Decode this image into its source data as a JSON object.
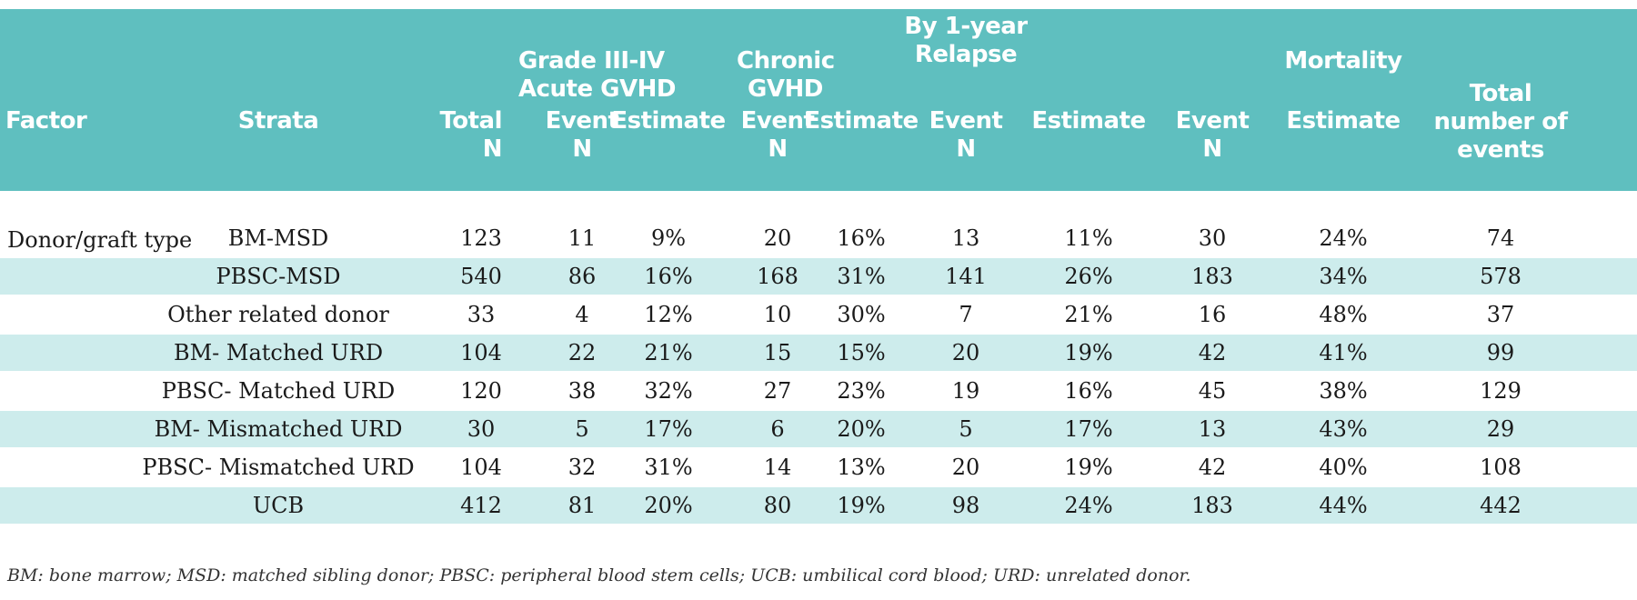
{
  "headers": {
    "factor": "Factor",
    "strata": "Strata",
    "total_n": [
      "Total",
      "N"
    ],
    "acute_group": [
      "Grade III-IV",
      "Acute GVHD"
    ],
    "acute_event": [
      "Event",
      "N"
    ],
    "acute_estimate": "Estimate",
    "chronic_group": [
      "Chronic",
      "GVHD"
    ],
    "chronic_event": [
      "Event",
      "N"
    ],
    "chronic_estimate": "Estimate",
    "relapse_group": [
      "By 1-year",
      "Relapse"
    ],
    "relapse_event": [
      "Event",
      "N"
    ],
    "relapse_estimate": "Estimate",
    "mortality_group": "Mortality",
    "mortality_event": [
      "Event",
      "N"
    ],
    "mortality_estimate": "Estimate",
    "total_events": [
      "Total",
      "number of",
      "events"
    ]
  },
  "factor_label": "Donor/graft type",
  "rows": [
    {
      "strata": "BM-MSD",
      "total": "123",
      "agvhd_n": "11",
      "agvhd_est": "9%",
      "cgvhd_n": "20",
      "cgvhd_est": "16%",
      "rel_n": "13",
      "rel_est": "11%",
      "mort_n": "30",
      "mort_est": "24%",
      "total_events": "74"
    },
    {
      "strata": "PBSC-MSD",
      "total": "540",
      "agvhd_n": "86",
      "agvhd_est": "16%",
      "cgvhd_n": "168",
      "cgvhd_est": "31%",
      "rel_n": "141",
      "rel_est": "26%",
      "mort_n": "183",
      "mort_est": "34%",
      "total_events": "578"
    },
    {
      "strata": "Other related donor",
      "total": "33",
      "agvhd_n": "4",
      "agvhd_est": "12%",
      "cgvhd_n": "10",
      "cgvhd_est": "30%",
      "rel_n": "7",
      "rel_est": "21%",
      "mort_n": "16",
      "mort_est": "48%",
      "total_events": "37"
    },
    {
      "strata": "BM- Matched URD",
      "total": "104",
      "agvhd_n": "22",
      "agvhd_est": "21%",
      "cgvhd_n": "15",
      "cgvhd_est": "15%",
      "rel_n": "20",
      "rel_est": "19%",
      "mort_n": "42",
      "mort_est": "41%",
      "total_events": "99"
    },
    {
      "strata": "PBSC- Matched URD",
      "total": "120",
      "agvhd_n": "38",
      "agvhd_est": "32%",
      "cgvhd_n": "27",
      "cgvhd_est": "23%",
      "rel_n": "19",
      "rel_est": "16%",
      "mort_n": "45",
      "mort_est": "38%",
      "total_events": "129"
    },
    {
      "strata": "BM- Mismatched URD",
      "total": "30",
      "agvhd_n": "5",
      "agvhd_est": "17%",
      "cgvhd_n": "6",
      "cgvhd_est": "20%",
      "rel_n": "5",
      "rel_est": "17%",
      "mort_n": "13",
      "mort_est": "43%",
      "total_events": "29"
    },
    {
      "strata": "PBSC- Mismatched URD",
      "total": "104",
      "agvhd_n": "32",
      "agvhd_est": "31%",
      "cgvhd_n": "14",
      "cgvhd_est": "13%",
      "rel_n": "20",
      "rel_est": "19%",
      "mort_n": "42",
      "mort_est": "40%",
      "total_events": "108"
    },
    {
      "strata": "UCB",
      "total": "412",
      "agvhd_n": "81",
      "agvhd_est": "20%",
      "cgvhd_n": "80",
      "cgvhd_est": "19%",
      "rel_n": "98",
      "rel_est": "24%",
      "mort_n": "183",
      "mort_est": "44%",
      "total_events": "442"
    }
  ],
  "footnote": "BM: bone marrow; MSD: matched sibling donor; PBSC: peripheral blood stem cells; UCB: umbilical cord blood; URD: unrelated donor.",
  "colors": {
    "header_bg": "#5fbfbf",
    "row_shade": "#cdecec"
  }
}
